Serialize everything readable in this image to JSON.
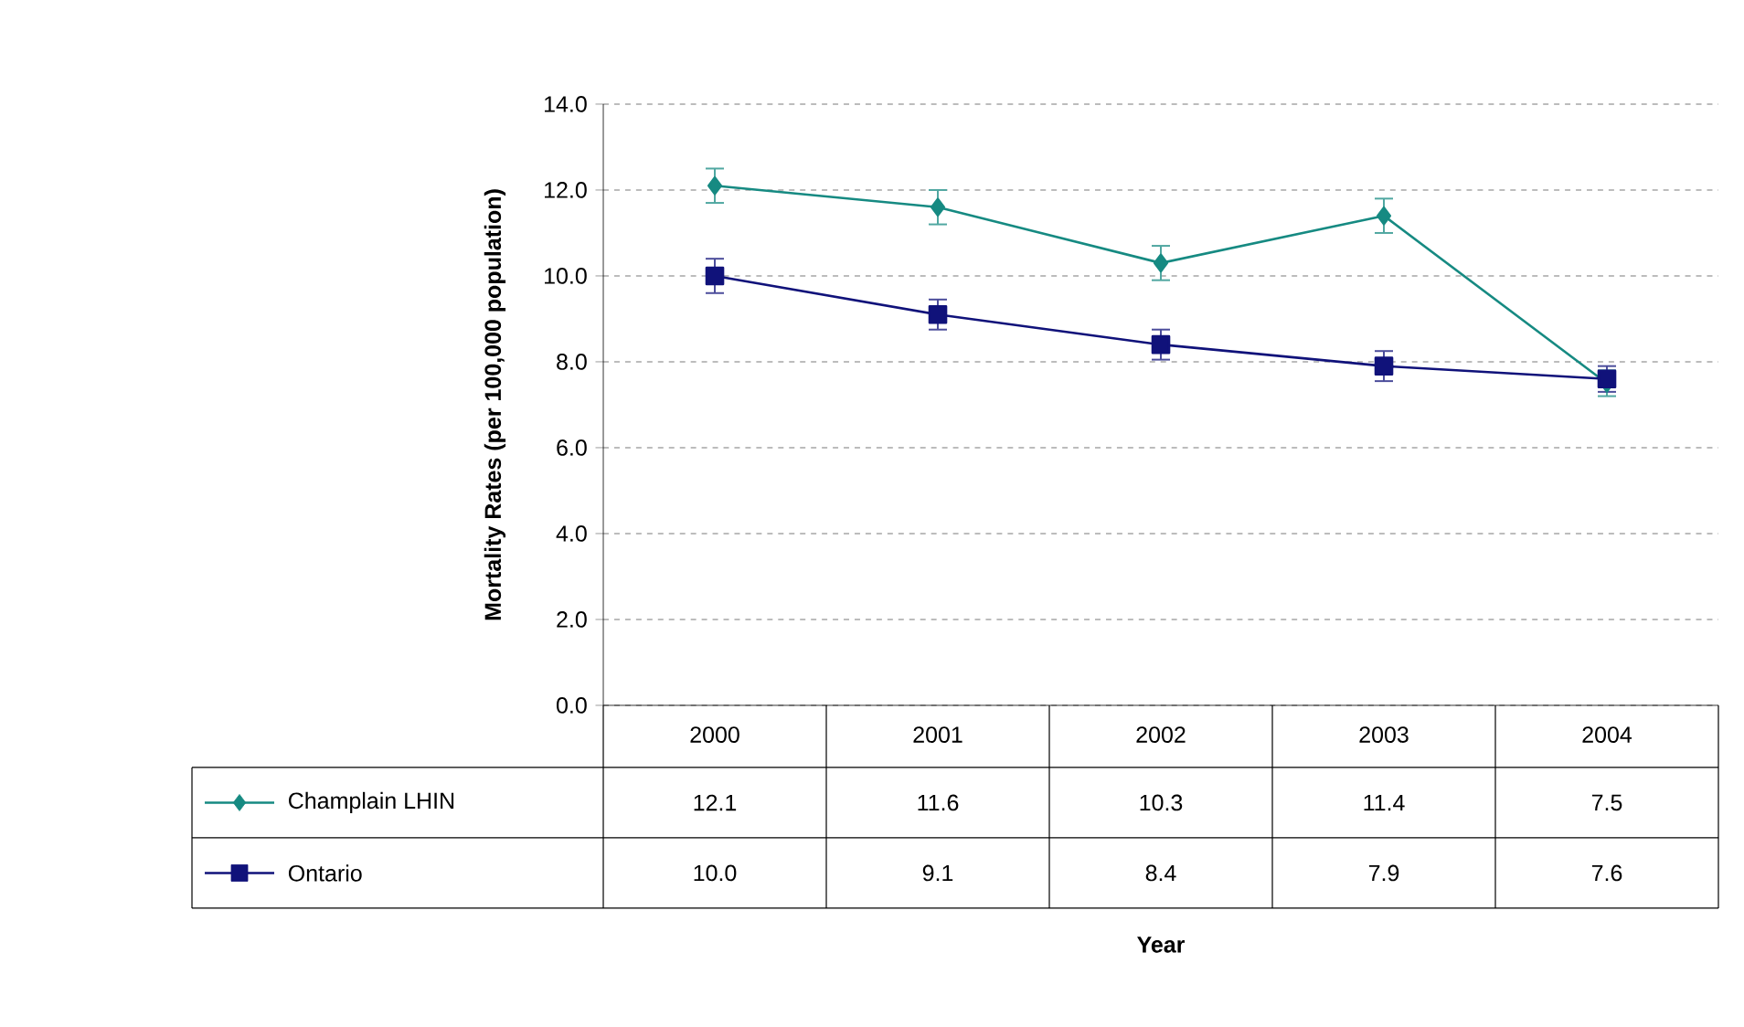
{
  "chart_data": {
    "type": "line",
    "annotations": [
      "Year"
    ],
    "ylabel": "Mortality Rates (per 100,000 population)",
    "categories": [
      "2000",
      "2001",
      "2002",
      "2003",
      "2004"
    ],
    "series": [
      {
        "name": "Champlain LHIN",
        "color": "#168a82",
        "marker": "diamond",
        "values": [
          12.1,
          11.6,
          10.3,
          11.4,
          7.5
        ],
        "value_labels": [
          "12.1",
          "11.6",
          "10.3",
          "11.4",
          "7.5"
        ],
        "errors": [
          0.4,
          0.4,
          0.4,
          0.4,
          0.3
        ]
      },
      {
        "name": "Ontario",
        "color": "#10127a",
        "marker": "square",
        "values": [
          10.0,
          9.1,
          8.4,
          7.9,
          7.6
        ],
        "value_labels": [
          "10.0",
          "9.1",
          "8.4",
          "7.9",
          "7.6"
        ],
        "errors": [
          0.4,
          0.35,
          0.35,
          0.35,
          0.3
        ]
      }
    ],
    "ylim": [
      0,
      14
    ],
    "yticks": [
      {
        "value": 0,
        "label": "0.0"
      },
      {
        "value": 2,
        "label": "2.0"
      },
      {
        "value": 4,
        "label": "4.0"
      },
      {
        "value": 6,
        "label": "6.0"
      },
      {
        "value": 8,
        "label": "8.0"
      },
      {
        "value": 10,
        "label": "10.0"
      },
      {
        "value": 12,
        "label": "12.0"
      },
      {
        "value": 14,
        "label": "14.0"
      }
    ],
    "grid": "y",
    "legend": "bottom",
    "line_style": "solid"
  }
}
